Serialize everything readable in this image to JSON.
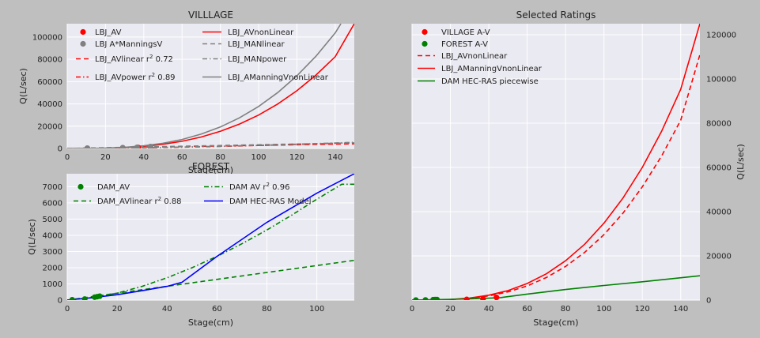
{
  "chart_data": [
    {
      "id": "village",
      "type": "line",
      "title": "VILLLAGE",
      "xlabel": "Stage(cm)",
      "ylabel": "Q(L/sec)",
      "xlim": [
        0,
        150
      ],
      "ylim": [
        0,
        112000
      ],
      "xticks": [
        0,
        20,
        40,
        60,
        80,
        100,
        120,
        140
      ],
      "yticks": [
        0,
        20000,
        40000,
        60000,
        80000,
        100000
      ],
      "grid": true,
      "legend": {
        "placement": "top",
        "columns": 2
      },
      "series": [
        {
          "name": "LBJ_AV",
          "kind": "points",
          "color": "#ff0000",
          "x": [
            10.5,
            29,
            37,
            43.5
          ],
          "y": [
            120,
            480,
            900,
            1250
          ]
        },
        {
          "name": "LBJ A*ManningsV",
          "kind": "points",
          "color": "#808080",
          "x": [
            10.5,
            29,
            36.5,
            43.5
          ],
          "y": [
            300,
            700,
            1000,
            1700
          ]
        },
        {
          "name": "LBJ_AVlinear r2 0.72",
          "kind": "line",
          "style": "dashed",
          "color": "#ff0000",
          "x": [
            0,
            150
          ],
          "y": [
            0,
            4200
          ]
        },
        {
          "name": "LBJ_AVpower r2 0.89",
          "kind": "line",
          "style": "dashdot",
          "color": "#ff0000",
          "x": [
            0,
            10,
            20,
            30,
            40,
            50,
            60,
            70,
            80,
            90,
            100,
            110,
            120,
            130,
            140,
            150
          ],
          "y": [
            0,
            50,
            180,
            360,
            580,
            850,
            1150,
            1480,
            1850,
            2250,
            2680,
            3130,
            3600,
            4100,
            4620,
            5150
          ]
        },
        {
          "name": "LBJ_AVnonLinear",
          "kind": "line",
          "style": "solid",
          "color": "#ff0000",
          "x": [
            0,
            10,
            20,
            30,
            40,
            50,
            60,
            70,
            80,
            90,
            100,
            110,
            120,
            130,
            140,
            150
          ],
          "y": [
            0,
            30,
            240,
            810,
            1920,
            3750,
            6480,
            10290,
            15360,
            21870,
            30000,
            39930,
            51840,
            65910,
            82320,
            112000
          ]
        },
        {
          "name": "LBJ_MANlinear",
          "kind": "line",
          "style": "dashed",
          "color": "#808080",
          "x": [
            0,
            150
          ],
          "y": [
            0,
            5000
          ]
        },
        {
          "name": "LBJ_MANpower",
          "kind": "line",
          "style": "dashdot",
          "color": "#808080",
          "x": [
            0,
            10,
            20,
            30,
            40,
            50,
            60,
            70,
            80,
            90,
            100,
            110,
            120,
            130,
            140,
            150
          ],
          "y": [
            0,
            60,
            200,
            400,
            640,
            930,
            1250,
            1610,
            2000,
            2430,
            2880,
            3360,
            3870,
            4410,
            4970,
            5550
          ]
        },
        {
          "name": "LBJ_AManningVnonLinear",
          "kind": "line",
          "style": "solid",
          "color": "#808080",
          "x": [
            0,
            10,
            20,
            30,
            40,
            50,
            60,
            70,
            80,
            90,
            100,
            110,
            120,
            130,
            140,
            143
          ],
          "y": [
            0,
            40,
            300,
            1000,
            2400,
            4700,
            8100,
            12900,
            19300,
            27500,
            37700,
            50200,
            65200,
            82900,
            103600,
            112000
          ]
        }
      ]
    },
    {
      "id": "forest",
      "type": "line",
      "title": "FOREST",
      "xlabel": "Stage(cm)",
      "ylabel": "Q(L/sec)",
      "xlim": [
        0,
        115
      ],
      "ylim": [
        0,
        7800
      ],
      "xticks": [
        0,
        20,
        40,
        60,
        80,
        100
      ],
      "yticks": [
        0,
        1000,
        2000,
        3000,
        4000,
        5000,
        6000,
        7000
      ],
      "grid": true,
      "legend": {
        "placement": "top",
        "columns": 2
      },
      "series": [
        {
          "name": "DAM_AV",
          "kind": "points",
          "color": "#008000",
          "x": [
            2,
            7,
            11,
            12,
            13
          ],
          "y": [
            20,
            60,
            180,
            210,
            240
          ]
        },
        {
          "name": "DAM_AVlinear r2 0.88",
          "kind": "line",
          "style": "dashed",
          "color": "#008000",
          "x": [
            0,
            115
          ],
          "y": [
            0,
            2450
          ]
        },
        {
          "name": "DAM AV r2 0.96",
          "kind": "line",
          "style": "dashdot",
          "color": "#008000",
          "x": [
            0,
            10,
            20,
            30,
            40,
            50,
            60,
            70,
            80,
            90,
            100,
            110,
            115
          ],
          "y": [
            0,
            150,
            430,
            850,
            1380,
            2000,
            2700,
            3480,
            4330,
            5250,
            6230,
            7150,
            7150
          ]
        },
        {
          "name": "DAM HEC-RAS Model",
          "kind": "line",
          "style": "solid",
          "color": "#0000ff",
          "x": [
            0,
            10,
            20,
            30,
            40,
            46,
            60,
            80,
            100,
            115
          ],
          "y": [
            0,
            150,
            330,
            580,
            850,
            1100,
            2700,
            4800,
            6600,
            7800
          ]
        }
      ]
    },
    {
      "id": "selected",
      "type": "line",
      "title": "Selected Ratings",
      "xlabel": "Stage(cm)",
      "ylabel": "Q(L/sec)",
      "xlim": [
        0,
        150
      ],
      "ylim": [
        0,
        125000
      ],
      "xticks": [
        0,
        20,
        40,
        60,
        80,
        100,
        120,
        140
      ],
      "yticks": [
        0,
        20000,
        40000,
        60000,
        80000,
        100000,
        120000
      ],
      "y_axis_side": "right",
      "grid": true,
      "legend": {
        "placement": "top-left",
        "columns": 1
      },
      "series": [
        {
          "name": "VILLAGE A-V",
          "kind": "points",
          "color": "#ff0000",
          "x": [
            28.5,
            37,
            44
          ],
          "y": [
            300,
            500,
            1200
          ]
        },
        {
          "name": "FOREST A-V",
          "kind": "points",
          "color": "#008000",
          "x": [
            2,
            7,
            11,
            12,
            13
          ],
          "y": [
            20,
            60,
            180,
            210,
            240
          ]
        },
        {
          "name": "LBJ_AVnonLinear",
          "kind": "line",
          "style": "dashed",
          "color": "#ff0000",
          "x": [
            0,
            10,
            20,
            30,
            40,
            50,
            60,
            70,
            80,
            90,
            100,
            110,
            120,
            130,
            140,
            150
          ],
          "y": [
            0,
            30,
            240,
            800,
            1900,
            3700,
            6400,
            10200,
            15200,
            21600,
            29600,
            39400,
            51200,
            65100,
            81300,
            111000
          ]
        },
        {
          "name": "LBJ_AManningVnonLinear",
          "kind": "line",
          "style": "solid",
          "color": "#ff0000",
          "x": [
            0,
            10,
            20,
            30,
            40,
            50,
            60,
            70,
            80,
            90,
            100,
            110,
            120,
            130,
            140,
            150
          ],
          "y": [
            0,
            35,
            280,
            940,
            2200,
            4300,
            7500,
            11900,
            17800,
            25300,
            34800,
            46200,
            60000,
            76300,
            95300,
            125000
          ]
        },
        {
          "name": "DAM HEC-RAS piecewise",
          "kind": "line",
          "style": "solid",
          "color": "#008000",
          "x": [
            0,
            10,
            20,
            30,
            40,
            46,
            60,
            80,
            100,
            120,
            150
          ],
          "y": [
            0,
            150,
            330,
            580,
            850,
            1100,
            2700,
            4800,
            6600,
            8300,
            11000
          ]
        }
      ]
    }
  ]
}
